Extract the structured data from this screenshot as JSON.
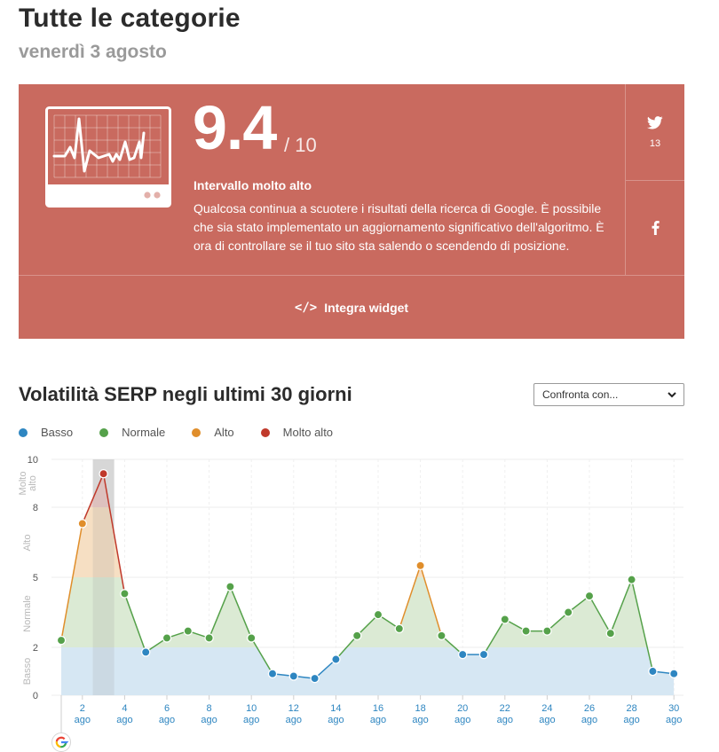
{
  "header": {
    "title": "Tutte le categorie",
    "date": "venerdì 3 agosto"
  },
  "card": {
    "score": "9.4",
    "score_max": "/ 10",
    "range_label": "Intervallo molto alto",
    "description": "Qualcosa continua a scuotere i risultati della ricerca di Google. È possibile che sia stato implementato un aggiornamento significativo dell'algoritmo. È ora di controllare se il tuo sito sta salendo o scendendo di posizione.",
    "twitter_count": "13",
    "embed_label": "Integra widget",
    "background_color": "#c96a5f"
  },
  "section": {
    "title": "Volatilità SERP negli ultimi 30 giorni",
    "compare_label": "Confronta con..."
  },
  "chart_data": {
    "type": "area",
    "title": "",
    "xlabel": "",
    "ylabel": "",
    "ylim": [
      0,
      10
    ],
    "yticks": [
      0,
      2,
      5,
      8,
      10
    ],
    "x": [
      1,
      2,
      3,
      4,
      5,
      6,
      7,
      8,
      9,
      10,
      11,
      12,
      13,
      14,
      15,
      16,
      17,
      18,
      19,
      20,
      21,
      22,
      23,
      24,
      25,
      26,
      27,
      28,
      29,
      30
    ],
    "values": [
      2.3,
      7.3,
      9.4,
      4.3,
      1.8,
      2.4,
      2.7,
      2.4,
      4.6,
      2.4,
      0.9,
      0.8,
      0.7,
      1.5,
      2.5,
      3.4,
      2.8,
      5.5,
      2.5,
      1.7,
      1.7,
      3.2,
      2.7,
      2.7,
      3.5,
      4.2,
      2.6,
      4.9,
      1.0,
      0.9
    ],
    "xtick_labels": [
      {
        "x": 2,
        "day": "2",
        "month": "ago"
      },
      {
        "x": 4,
        "day": "4",
        "month": "ago"
      },
      {
        "x": 6,
        "day": "6",
        "month": "ago"
      },
      {
        "x": 8,
        "day": "8",
        "month": "ago"
      },
      {
        "x": 10,
        "day": "10",
        "month": "ago"
      },
      {
        "x": 12,
        "day": "12",
        "month": "ago"
      },
      {
        "x": 14,
        "day": "14",
        "month": "ago"
      },
      {
        "x": 16,
        "day": "16",
        "month": "ago"
      },
      {
        "x": 18,
        "day": "18",
        "month": "ago"
      },
      {
        "x": 20,
        "day": "20",
        "month": "ago"
      },
      {
        "x": 22,
        "day": "22",
        "month": "ago"
      },
      {
        "x": 24,
        "day": "24",
        "month": "ago"
      },
      {
        "x": 26,
        "day": "26",
        "month": "ago"
      },
      {
        "x": 28,
        "day": "28",
        "month": "ago"
      },
      {
        "x": 30,
        "day": "30",
        "month": "ago"
      }
    ],
    "zones": [
      {
        "name": "Basso",
        "min": 0,
        "max": 2,
        "color": "#2e86c1",
        "fill": "#d6e7f3"
      },
      {
        "name": "Normale",
        "min": 2,
        "max": 5,
        "color": "#55a14a",
        "fill": "#dbead4"
      },
      {
        "name": "Alto",
        "min": 5,
        "max": 8,
        "color": "#e08e2b",
        "fill": "#f6dfc3"
      },
      {
        "name": "Molto alto",
        "min": 8,
        "max": 10,
        "color": "#c0392b",
        "fill": "#eccac6"
      }
    ],
    "zone_labels": [
      "Basso",
      "Normale",
      "Alto",
      "Molto alto"
    ],
    "highlighted_x": 3,
    "annotation_icon": "google-g-icon",
    "annotation_x": 1,
    "legend_position": "top-left",
    "grid": true
  }
}
